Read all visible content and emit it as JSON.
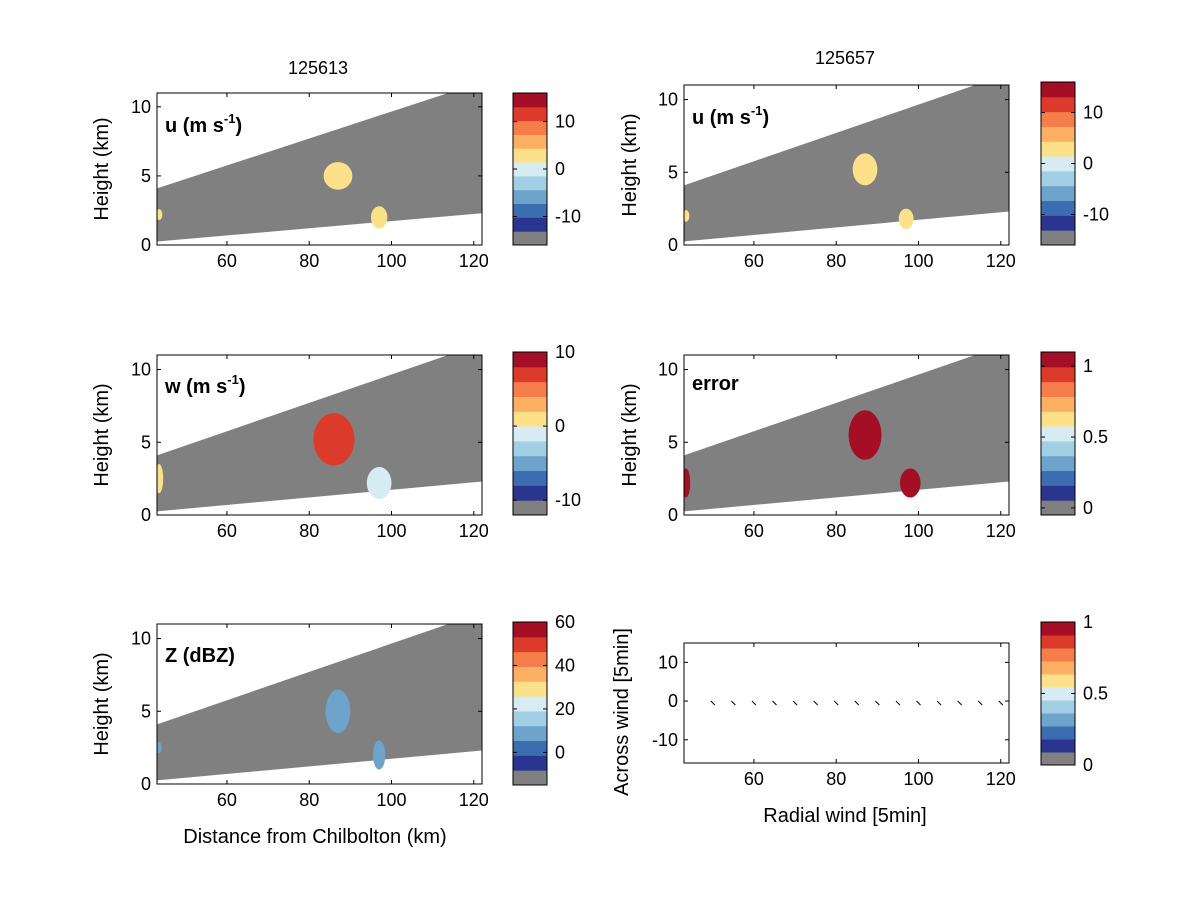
{
  "colormap": [
    "#2a3590",
    "#3b6db0",
    "#6ea3cc",
    "#a3cfe4",
    "#d7ebf3",
    "#fde18a",
    "#fdb064",
    "#f57d4a",
    "#dc3b2c",
    "#a50f26"
  ],
  "missing_color": "#808080",
  "chart_data": [
    {
      "type": "heatmap",
      "title": "125613",
      "label_main": "u (m s",
      "label_sup": "-1",
      "ylabel": "Height (km)",
      "xlabel": "",
      "xlim": [
        43,
        122
      ],
      "ylim": [
        0,
        11
      ],
      "xticks": [
        60,
        80,
        100,
        120
      ],
      "yticks": [
        0,
        5,
        10
      ],
      "colorbar": {
        "range": [
          -16,
          16
        ],
        "ticks": [
          10,
          0,
          -10
        ]
      },
      "features": [
        {
          "x": 87,
          "y": 5.0,
          "rx": 3.5,
          "ry": 1.0,
          "value": 3
        },
        {
          "x": 97,
          "y": 2.0,
          "rx": 2.0,
          "ry": 0.8,
          "value": 0
        },
        {
          "x": 43.5,
          "y": 2.2,
          "rx": 0.8,
          "ry": 0.4,
          "value": 3
        }
      ]
    },
    {
      "type": "heatmap",
      "title": "125657",
      "label_main": "u (m s",
      "label_sup": "-1",
      "ylabel": "Height (km)",
      "xlabel": "",
      "xlim": [
        43,
        122
      ],
      "ylim": [
        0,
        11
      ],
      "xticks": [
        60,
        80,
        100,
        120
      ],
      "yticks": [
        0,
        5,
        10
      ],
      "colorbar": {
        "range": [
          -16,
          16
        ],
        "ticks": [
          10,
          0,
          -10
        ]
      },
      "features": [
        {
          "x": 87,
          "y": 5.2,
          "rx": 3.0,
          "ry": 1.1,
          "value": 3
        },
        {
          "x": 97,
          "y": 1.8,
          "rx": 1.8,
          "ry": 0.7,
          "value": 0
        },
        {
          "x": 43.5,
          "y": 2.0,
          "rx": 0.8,
          "ry": 0.4,
          "value": 3
        }
      ]
    },
    {
      "type": "heatmap",
      "title": "",
      "label_main": "w (m s",
      "label_sup": "-1",
      "ylabel": "Height (km)",
      "xlabel": "",
      "xlim": [
        43,
        122
      ],
      "ylim": [
        0,
        11
      ],
      "xticks": [
        60,
        80,
        100,
        120
      ],
      "yticks": [
        0,
        5,
        10
      ],
      "colorbar": {
        "range": [
          -12,
          10
        ],
        "ticks": [
          10,
          0,
          -10
        ]
      },
      "features": [
        {
          "x": 86,
          "y": 5.2,
          "rx": 5.0,
          "ry": 1.8,
          "value": 6
        },
        {
          "x": 97,
          "y": 2.2,
          "rx": 3.0,
          "ry": 1.1,
          "value": -3
        },
        {
          "x": 43.5,
          "y": 2.5,
          "rx": 1.0,
          "ry": 1.0,
          "value": -1
        }
      ]
    },
    {
      "type": "heatmap",
      "title": "",
      "label_main": "error",
      "label_sup": "",
      "ylabel": "Height (km)",
      "xlabel": "",
      "xlim": [
        43,
        122
      ],
      "ylim": [
        0,
        11
      ],
      "xticks": [
        60,
        80,
        100,
        120
      ],
      "yticks": [
        0,
        5,
        10
      ],
      "colorbar": {
        "range": [
          -0.05,
          1.1
        ],
        "ticks": [
          1,
          0.5,
          0
        ]
      },
      "features": [
        {
          "x": 87,
          "y": 5.5,
          "rx": 4.0,
          "ry": 1.7,
          "value": 1.0
        },
        {
          "x": 98,
          "y": 2.2,
          "rx": 2.5,
          "ry": 1.0,
          "value": 1.0
        },
        {
          "x": 43.5,
          "y": 2.2,
          "rx": 1.0,
          "ry": 1.0,
          "value": 1.0
        }
      ]
    },
    {
      "type": "heatmap",
      "title": "",
      "label_main": "Z (dBZ)",
      "label_sup": "",
      "ylabel": "Height (km)",
      "xlabel": "Distance from Chilbolton (km)",
      "xlim": [
        43,
        122
      ],
      "ylim": [
        0,
        11
      ],
      "xticks": [
        60,
        80,
        100,
        120
      ],
      "yticks": [
        0,
        5,
        10
      ],
      "colorbar": {
        "range": [
          -15,
          60
        ],
        "ticks": [
          60,
          40,
          20,
          0
        ]
      },
      "features": [
        {
          "x": 87,
          "y": 5.0,
          "rx": 3.0,
          "ry": 1.5,
          "value": 5
        },
        {
          "x": 97,
          "y": 2.0,
          "rx": 1.5,
          "ry": 1.0,
          "value": 5
        },
        {
          "x": 43.5,
          "y": 2.5,
          "rx": 0.6,
          "ry": 0.4,
          "value": 5
        }
      ]
    },
    {
      "type": "scatter",
      "title": "",
      "label_main": "",
      "label_sup": "",
      "ylabel": "Across wind [5min]",
      "xlabel": "Radial wind [5min]",
      "xlim": [
        43,
        122
      ],
      "ylim": [
        -16,
        15
      ],
      "xticks": [
        60,
        80,
        100,
        120
      ],
      "yticks": [
        10,
        0,
        -10
      ],
      "colorbar": {
        "range": [
          0,
          1
        ],
        "ticks": [
          1,
          0.5,
          0
        ]
      },
      "x": [
        50,
        55,
        60,
        65,
        70,
        75,
        80,
        85,
        90,
        95,
        100,
        105,
        110,
        115,
        120
      ],
      "y": [
        -0.5,
        -0.5,
        -0.5,
        -0.5,
        -0.5,
        -0.5,
        -0.5,
        -0.5,
        -0.5,
        -0.5,
        -0.5,
        -0.5,
        -0.5,
        -0.5,
        -0.5
      ]
    }
  ]
}
